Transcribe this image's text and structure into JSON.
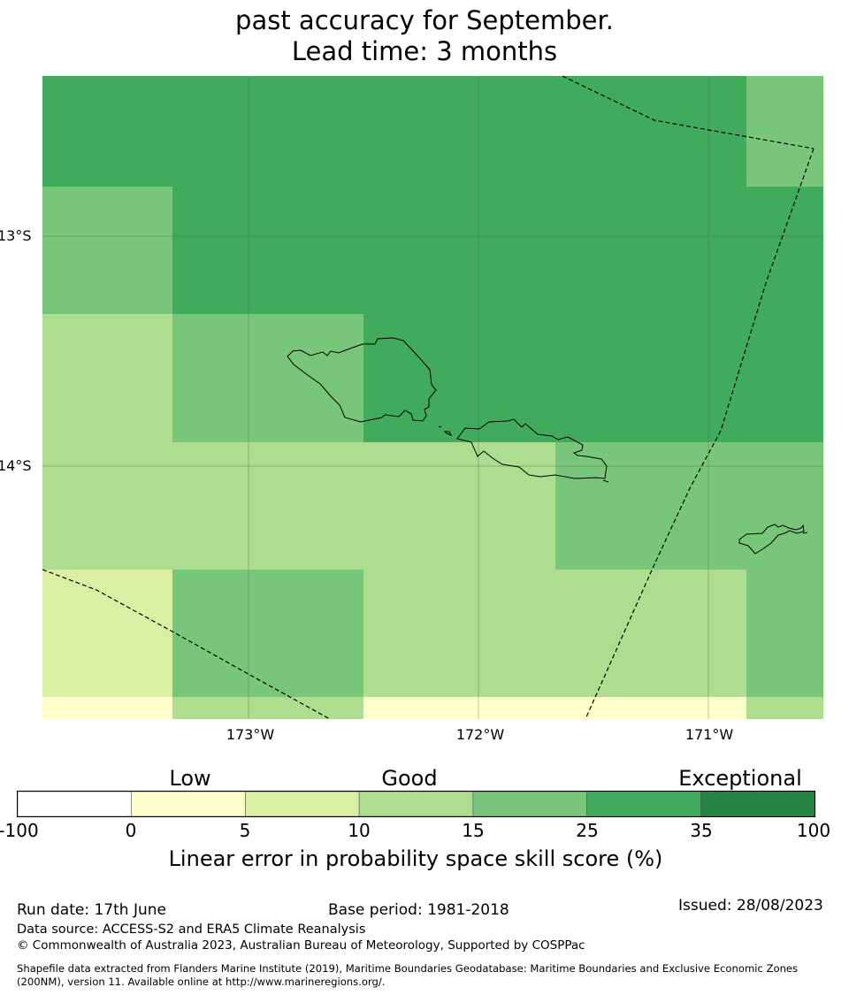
{
  "title": {
    "line1": "past accuracy for September.",
    "line2": "Lead time: 3 months"
  },
  "map": {
    "lat_labels": [
      "13°S",
      "14°S"
    ],
    "lon_labels": [
      "173°W",
      "172°W",
      "171°W"
    ],
    "colors": {
      "bin_0_5": "#ffffcc",
      "bin_5_10": "#d9f0a3",
      "bin_10_15": "#addd8e",
      "bin_15_25": "#78c679",
      "bin_25_35": "#41ab5d",
      "bin_35_100": "#238443",
      "gridline": "#555555",
      "boundary": "#000000"
    },
    "grid_bins": [
      [
        4,
        4,
        4,
        4,
        4,
        4,
        3
      ],
      [
        3,
        4,
        4,
        4,
        4,
        4,
        4
      ],
      [
        2,
        3,
        4,
        4,
        4,
        4,
        4
      ],
      [
        2,
        2,
        2,
        2,
        3,
        3,
        3
      ],
      [
        1,
        3,
        2,
        2,
        2,
        2,
        3
      ],
      [
        0,
        2,
        0,
        0,
        0,
        0,
        2
      ]
    ]
  },
  "legend": {
    "categories": [
      "Low",
      "Good",
      "Exceptional"
    ],
    "ticks": [
      "-100",
      "0",
      "5",
      "10",
      "15",
      "25",
      "35",
      "100"
    ],
    "bins": [
      "#ffffff",
      "#ffffcc",
      "#d9f0a3",
      "#addd8e",
      "#78c679",
      "#41ab5d",
      "#238443"
    ],
    "label": "Linear error in probability space skill score (%)"
  },
  "footer": {
    "run_date": "Run date: 17th June",
    "base_period": "Base period: 1981-2018",
    "issued": "Issued: 28/08/2023",
    "data_source": "Data source: ACCESS-S2 and ERA5 Climate Reanalysis",
    "copyright": "© Commonwealth of Australia 2023, Australian Bureau of Meteorology, Supported by COSPPac",
    "shapefile_line1": "Shapefile data extracted from Flanders Marine Institute (2019), Maritime Boundaries Geodatabase: Maritime Boundaries and Exclusive Economic Zones",
    "shapefile_line2": "(200NM), version 11. Available online at http://www.marineregions.org/."
  }
}
